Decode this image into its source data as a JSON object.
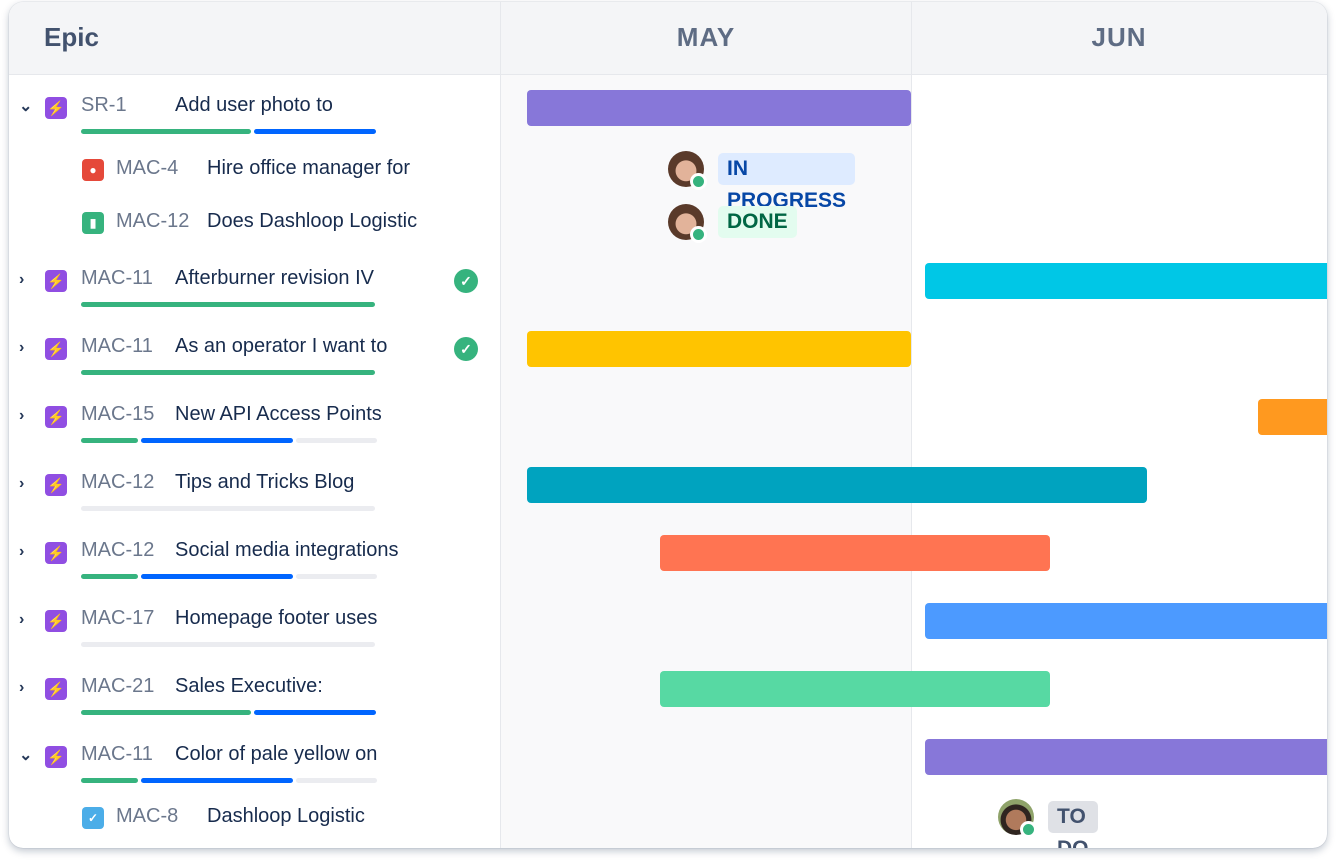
{
  "header": {
    "epic_label": "Epic",
    "months": [
      "MAY",
      "JUN"
    ]
  },
  "colors": {
    "done": "#36B37E",
    "in_progress": "#0065FF",
    "todo": "#EBECF0"
  },
  "rows": [
    {
      "type": "epic",
      "expanded": true,
      "key": "SR-1",
      "summary": "Add user photo to",
      "progress": {
        "done": 0.58,
        "in_progress": 0.42,
        "todo": 0
      },
      "bar": {
        "start": "05-03",
        "end": "06-01",
        "color": "#8777D9"
      }
    },
    {
      "type": "child",
      "issue_type": "bug",
      "key": "MAC-4",
      "summary": "Hire office manager for",
      "status": "IN PROGRESS",
      "assignee": "avatar-woman"
    },
    {
      "type": "child",
      "issue_type": "story",
      "key": "MAC-12",
      "summary": "Does Dashloop Logistic",
      "status": "DONE",
      "assignee": "avatar-woman"
    },
    {
      "type": "epic",
      "expanded": false,
      "key": "MAC-11",
      "summary": "Afterburner revision IV",
      "complete": true,
      "progress": {
        "done": 1,
        "in_progress": 0,
        "todo": 0
      },
      "bar": {
        "start": "06-02",
        "end": "07-05",
        "color": "#00C7E6"
      }
    },
    {
      "type": "epic",
      "expanded": false,
      "key": "MAC-11",
      "summary": "As an operator I want to",
      "complete": true,
      "progress": {
        "done": 1,
        "in_progress": 0,
        "todo": 0
      },
      "bar": {
        "start": "05-03",
        "end": "06-01",
        "color": "#FFC400"
      }
    },
    {
      "type": "epic",
      "expanded": false,
      "key": "MAC-15",
      "summary": "New API Access Points",
      "progress": {
        "done": 0.2,
        "in_progress": 0.52,
        "todo": 0.28
      },
      "bar": {
        "start": "06-26",
        "end": "07-05",
        "color": "#FF991F"
      }
    },
    {
      "type": "epic",
      "expanded": false,
      "key": "MAC-12",
      "summary": "Tips and Tricks Blog",
      "progress": {
        "done": 0,
        "in_progress": 0,
        "todo": 1
      },
      "bar": {
        "start": "05-03",
        "end": "06-18",
        "color": "#00A3BF"
      }
    },
    {
      "type": "epic",
      "expanded": false,
      "key": "MAC-12",
      "summary": "Social media integrations",
      "progress": {
        "done": 0.2,
        "in_progress": 0.52,
        "todo": 0.28
      },
      "bar": {
        "start": "05-13",
        "end": "06-11",
        "color": "#FF7452"
      }
    },
    {
      "type": "epic",
      "expanded": false,
      "key": "MAC-17",
      "summary": "Homepage footer uses",
      "progress": {
        "done": 0,
        "in_progress": 0,
        "todo": 1
      },
      "bar": {
        "start": "06-02",
        "end": "07-05",
        "color": "#4C9AFF"
      }
    },
    {
      "type": "epic",
      "expanded": false,
      "key": "MAC-21",
      "summary": "Sales Executive:",
      "progress": {
        "done": 0.58,
        "in_progress": 0.42,
        "todo": 0
      },
      "bar": {
        "start": "05-13",
        "end": "06-11",
        "color": "#57D9A3"
      }
    },
    {
      "type": "epic",
      "expanded": true,
      "key": "MAC-11",
      "summary": "Color of pale yellow on",
      "progress": {
        "done": 0.2,
        "in_progress": 0.52,
        "todo": 0.28
      },
      "bar": {
        "start": "06-02",
        "end": "07-05",
        "color": "#8777D9"
      }
    },
    {
      "type": "child",
      "issue_type": "task",
      "key": "MAC-8",
      "summary": "Dashloop Logistic",
      "status": "TO DO",
      "assignee": "avatar-man"
    }
  ]
}
